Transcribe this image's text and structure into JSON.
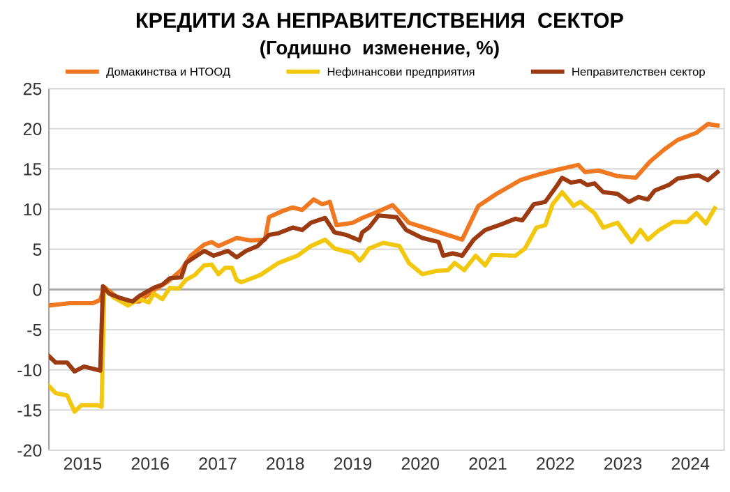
{
  "chart_data": {
    "type": "line",
    "title": "КРЕДИТИ ЗА НЕПРАВИТЕЛСТВЕНИЯ  СЕКТОР",
    "subtitle": "(Годишно  изменение, %)",
    "xlim": [
      2015.0,
      2025.0
    ],
    "xticks": [
      {
        "value": 2015.5,
        "label": "2015"
      },
      {
        "value": 2016.5,
        "label": "2016"
      },
      {
        "value": 2017.5,
        "label": "2017"
      },
      {
        "value": 2018.5,
        "label": "2018"
      },
      {
        "value": 2019.5,
        "label": "2019"
      },
      {
        "value": 2020.5,
        "label": "2020"
      },
      {
        "value": 2021.5,
        "label": "2021"
      },
      {
        "value": 2022.5,
        "label": "2022"
      },
      {
        "value": 2023.5,
        "label": "2023"
      },
      {
        "value": 2024.5,
        "label": "2024"
      }
    ],
    "ylim": [
      -20,
      25
    ],
    "yticks": [
      -20,
      -15,
      -10,
      -5,
      0,
      5,
      10,
      15,
      20,
      25
    ],
    "grid": "y",
    "legend": "top",
    "marker": "none",
    "line_style": "solid",
    "ref_lines": [
      {
        "axis": "y",
        "value": 0,
        "color": "#a6a6a6"
      }
    ],
    "series": [
      {
        "name": "Домакинства и НТООД",
        "color": "#f07820",
        "x": [
          2015.0,
          2015.31,
          2015.65,
          2015.76,
          2015.82,
          2016.07,
          2016.34,
          2016.55,
          2016.75,
          2016.96,
          2017.1,
          2017.3,
          2017.41,
          2017.51,
          2017.78,
          2017.99,
          2018.2,
          2018.26,
          2018.47,
          2018.61,
          2018.75,
          2018.92,
          2019.05,
          2019.16,
          2019.26,
          2019.5,
          2019.64,
          2019.85,
          2020.09,
          2020.33,
          2020.67,
          2021.01,
          2021.12,
          2021.36,
          2021.63,
          2021.98,
          2022.25,
          2022.53,
          2022.84,
          2022.94,
          2023.14,
          2023.42,
          2023.69,
          2023.9,
          2024.11,
          2024.31,
          2024.59,
          2024.76,
          2024.9
        ],
        "values": [
          -2.0,
          -1.7,
          -1.7,
          -1.3,
          0.3,
          -1.4,
          -1.5,
          -0.1,
          0.9,
          2.4,
          4.2,
          5.6,
          5.9,
          5.4,
          6.4,
          6.1,
          6.2,
          9.0,
          9.8,
          10.2,
          9.9,
          11.2,
          10.6,
          10.9,
          8.0,
          8.3,
          8.9,
          9.6,
          10.5,
          8.3,
          7.4,
          6.5,
          6.2,
          10.4,
          11.9,
          13.6,
          14.3,
          14.9,
          15.5,
          14.6,
          14.8,
          14.1,
          13.9,
          15.9,
          17.4,
          18.6,
          19.5,
          20.6,
          20.4
        ]
      },
      {
        "name": "Нефинансови предприятия",
        "color": "#f2c80f",
        "x": [
          2015.0,
          2015.1,
          2015.27,
          2015.38,
          2015.48,
          2015.72,
          2015.78,
          2015.82,
          2015.96,
          2016.17,
          2016.34,
          2016.48,
          2016.55,
          2016.68,
          2016.79,
          2016.92,
          2017.03,
          2017.16,
          2017.3,
          2017.41,
          2017.51,
          2017.61,
          2017.71,
          2017.78,
          2017.85,
          2018.13,
          2018.4,
          2018.68,
          2018.88,
          2019.09,
          2019.23,
          2019.5,
          2019.6,
          2019.64,
          2019.74,
          2019.95,
          2020.19,
          2020.33,
          2020.53,
          2020.74,
          2020.91,
          2021.01,
          2021.15,
          2021.32,
          2021.46,
          2021.56,
          2021.91,
          2022.05,
          2022.22,
          2022.35,
          2022.46,
          2022.6,
          2022.77,
          2022.87,
          2023.08,
          2023.21,
          2023.42,
          2023.63,
          2023.76,
          2023.87,
          2024.04,
          2024.24,
          2024.45,
          2024.59,
          2024.73,
          2024.86
        ],
        "values": [
          -12.0,
          -12.9,
          -13.2,
          -15.2,
          -14.4,
          -14.4,
          -14.6,
          0.2,
          -1.0,
          -2.0,
          -1.2,
          -1.6,
          -0.5,
          -1.2,
          0.2,
          0.1,
          1.2,
          1.8,
          3.0,
          3.1,
          1.9,
          2.7,
          2.7,
          1.2,
          0.9,
          1.8,
          3.3,
          4.2,
          5.4,
          6.2,
          5.1,
          4.5,
          3.6,
          3.9,
          5.1,
          5.8,
          5.4,
          3.3,
          1.9,
          2.3,
          2.4,
          3.3,
          2.4,
          4.2,
          3.0,
          4.3,
          4.2,
          5.1,
          7.7,
          8.0,
          10.6,
          12.1,
          10.4,
          10.9,
          9.5,
          7.7,
          8.3,
          5.9,
          7.4,
          6.2,
          7.4,
          8.4,
          8.4,
          9.5,
          8.2,
          10.1
        ]
      },
      {
        "name": "Неправителствен сектор",
        "color": "#9c3a12",
        "x": [
          2015.0,
          2015.1,
          2015.27,
          2015.38,
          2015.52,
          2015.76,
          2015.8,
          2015.89,
          2016.07,
          2016.24,
          2016.34,
          2016.55,
          2016.68,
          2016.79,
          2016.96,
          2017.03,
          2017.3,
          2017.44,
          2017.65,
          2017.78,
          2017.92,
          2018.09,
          2018.26,
          2018.4,
          2018.61,
          2018.75,
          2018.88,
          2019.09,
          2019.23,
          2019.4,
          2019.6,
          2019.64,
          2019.74,
          2019.88,
          2020.15,
          2020.29,
          2020.53,
          2020.77,
          2020.84,
          2020.98,
          2021.12,
          2021.29,
          2021.46,
          2021.7,
          2021.91,
          2022.01,
          2022.18,
          2022.35,
          2022.53,
          2022.6,
          2022.73,
          2022.87,
          2022.97,
          2023.08,
          2023.21,
          2023.42,
          2023.59,
          2023.73,
          2023.87,
          2023.97,
          2024.18,
          2024.31,
          2024.52,
          2024.62,
          2024.76,
          2024.9
        ],
        "values": [
          -8.3,
          -9.1,
          -9.1,
          -10.2,
          -9.6,
          -10.1,
          0.4,
          -0.5,
          -1.1,
          -1.5,
          -0.8,
          0.2,
          0.6,
          1.4,
          1.5,
          3.3,
          4.8,
          4.2,
          4.8,
          4.0,
          4.8,
          5.4,
          6.8,
          7.0,
          7.7,
          7.4,
          8.3,
          8.9,
          7.1,
          6.8,
          6.1,
          7.1,
          7.7,
          9.2,
          9.0,
          7.4,
          6.4,
          5.9,
          4.2,
          4.5,
          4.2,
          6.2,
          7.4,
          8.1,
          8.8,
          8.6,
          10.6,
          10.9,
          13.0,
          13.9,
          13.3,
          13.5,
          13.0,
          13.2,
          12.1,
          11.9,
          10.9,
          11.5,
          11.2,
          12.3,
          13.0,
          13.8,
          14.1,
          14.2,
          13.6,
          14.6
        ]
      }
    ]
  }
}
